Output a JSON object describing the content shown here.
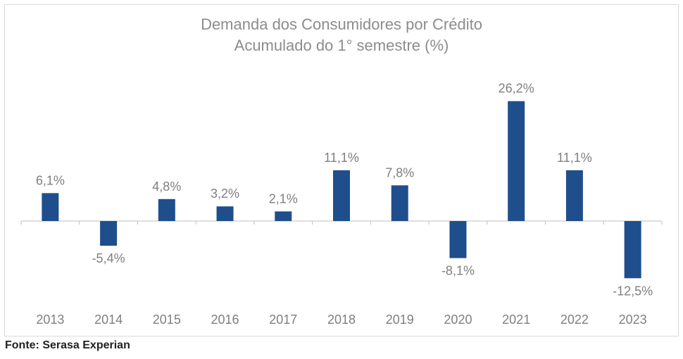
{
  "title_line1": "Demanda dos Consumidores por Crédito",
  "title_line2": "Acumulado do 1° semestre (%)",
  "source": "Fonte: Serasa Experian",
  "colors": {
    "bar": "#1f4e8c",
    "text": "#7f7f7f",
    "axis": "#bfbfbf"
  },
  "chart_data": {
    "type": "bar",
    "title": "Demanda dos Consumidores por Crédito Acumulado do 1° semestre (%)",
    "categories": [
      "2013",
      "2014",
      "2015",
      "2016",
      "2017",
      "2018",
      "2019",
      "2020",
      "2021",
      "2022",
      "2023"
    ],
    "values": [
      6.1,
      -5.4,
      4.8,
      3.2,
      2.1,
      11.1,
      7.8,
      -8.1,
      26.2,
      11.1,
      -12.5
    ],
    "data_labels": [
      "6,1%",
      "-5,4%",
      "4,8%",
      "3,2%",
      "2,1%",
      "11,1%",
      "7,8%",
      "-8,1%",
      "26,2%",
      "11,1%",
      "-12,5%"
    ],
    "ylim": [
      -12.5,
      26.2
    ],
    "grid": false,
    "legend": "none"
  }
}
